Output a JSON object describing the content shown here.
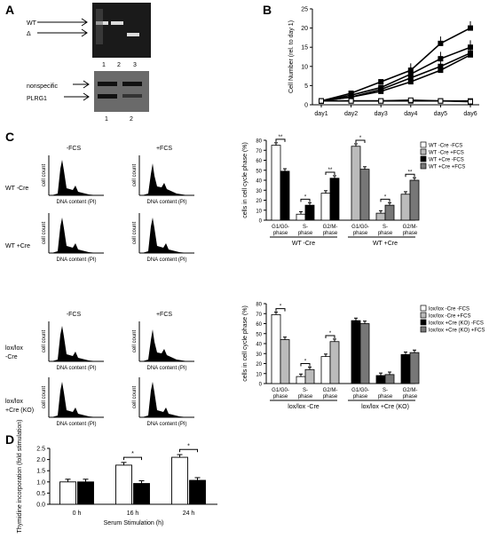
{
  "panels": {
    "A": {
      "label": "A",
      "gel_labels": [
        "WT",
        "Δ"
      ],
      "gel_lanes": [
        "1",
        "2",
        "3"
      ],
      "blot_labels": [
        "nonspecific",
        "PLRG1"
      ],
      "blot_lanes": [
        "1",
        "2"
      ]
    },
    "B": {
      "label": "B"
    },
    "C": {
      "label": "C"
    },
    "D": {
      "label": "D"
    }
  },
  "histograms": {
    "col_labels": [
      "-FCS",
      "+FCS"
    ],
    "row_labels": [
      "WT -Cre",
      "WT +Cre",
      "lox/lox",
      "-Cre",
      "lox/lox",
      "+Cre (KO)"
    ],
    "ylabel": "cell count",
    "xlabel": "DNA content (PI)"
  },
  "chart_data": [
    {
      "type": "line",
      "panel": "B",
      "ylabel": "Cell Number (rel. to day 1)",
      "categories": [
        "day1",
        "day2",
        "day3",
        "day4",
        "day5",
        "day6"
      ],
      "ylim": [
        0,
        25
      ],
      "yticks": [
        "0",
        "5",
        "10",
        "15",
        "20",
        "25"
      ],
      "series": [
        {
          "values": [
            1,
            3,
            6,
            9,
            16,
            20
          ]
        },
        {
          "values": [
            1,
            2.5,
            4.5,
            8,
            12,
            15
          ]
        },
        {
          "values": [
            1,
            2,
            4,
            7,
            10,
            13.5
          ]
        },
        {
          "values": [
            1,
            2,
            3.5,
            6,
            9,
            13
          ]
        },
        {
          "values": [
            1,
            1,
            1,
            1,
            1,
            1
          ]
        },
        {
          "values": [
            1,
            1,
            1,
            1.2,
            1,
            0.8
          ]
        }
      ]
    },
    {
      "type": "bar",
      "panel": "C-top",
      "ylabel": "cells in cell cycle phase (%)",
      "ylim": [
        0,
        80
      ],
      "yticks": [
        "0",
        "10",
        "20",
        "30",
        "40",
        "50",
        "60",
        "70",
        "80"
      ],
      "categories": [
        "G1/G0-phase",
        "S-phase",
        "G2/M-phase",
        "G1/G0-phase",
        "S-phase",
        "G2/M-phase"
      ],
      "group_labels": [
        "WT -Cre",
        "WT +Cre"
      ],
      "legend": [
        "WT -Cre -FCS",
        "WT -Cre +FCS",
        "WT +Cre -FCS",
        "WT +Cre +FCS"
      ],
      "colors": [
        "#ffffff",
        "#bbbbbb",
        "#000000",
        "#777777"
      ],
      "pairs": [
        {
          "series": [
            0,
            2
          ],
          "values": [
            75,
            49
          ],
          "sig": "**"
        },
        {
          "series": [
            0,
            2
          ],
          "values": [
            6,
            15
          ],
          "sig": "*"
        },
        {
          "series": [
            0,
            2
          ],
          "values": [
            27,
            42
          ],
          "sig": "**"
        },
        {
          "series": [
            1,
            3
          ],
          "values": [
            74,
            51
          ],
          "sig": "*"
        },
        {
          "series": [
            1,
            3
          ],
          "values": [
            7,
            15
          ],
          "sig": "*"
        },
        {
          "series": [
            1,
            3
          ],
          "values": [
            26,
            40
          ],
          "sig": "**"
        }
      ]
    },
    {
      "type": "bar",
      "panel": "C-bottom",
      "ylabel": "cells in cell cycle phase (%)",
      "ylim": [
        0,
        80
      ],
      "yticks": [
        "0",
        "10",
        "20",
        "30",
        "40",
        "50",
        "60",
        "70",
        "80"
      ],
      "categories": [
        "G1/G0-phase",
        "S-phase",
        "G2/M-phase",
        "G1/G0-phase",
        "S-phase",
        "G2/M-phase"
      ],
      "group_labels": [
        "lox/lox -Cre",
        "lox/lox +Cre (KO)"
      ],
      "legend": [
        "lox/lox -Cre -FCS",
        "lox/lox -Cre +FCS",
        "lox/lox +Cre (KO) -FCS",
        "lox/lox +Cre (KO) +FCS"
      ],
      "colors": [
        "#ffffff",
        "#bbbbbb",
        "#000000",
        "#777777"
      ],
      "pairs": [
        {
          "series": [
            0,
            1
          ],
          "values": [
            69,
            44
          ],
          "sig": "*"
        },
        {
          "series": [
            0,
            1
          ],
          "values": [
            7,
            14
          ],
          "sig": "*"
        },
        {
          "series": [
            0,
            1
          ],
          "values": [
            27,
            42
          ],
          "sig": "*"
        },
        {
          "series": [
            2,
            3
          ],
          "values": [
            63,
            60
          ],
          "sig": ""
        },
        {
          "series": [
            2,
            3
          ],
          "values": [
            8,
            9
          ],
          "sig": ""
        },
        {
          "series": [
            2,
            3
          ],
          "values": [
            29,
            31
          ],
          "sig": ""
        }
      ]
    },
    {
      "type": "bar",
      "panel": "D",
      "ylabel": "Thymidine incorporation (fold stimulation)",
      "xlabel": "Serum Stimulation (h)",
      "ylim": [
        0,
        2.5
      ],
      "yticks": [
        "0.0",
        "0.5",
        "1.0",
        "1.5",
        "2.0",
        "2.5"
      ],
      "categories": [
        "0 h",
        "16 h",
        "24 h"
      ],
      "colors": [
        "#ffffff",
        "#000000"
      ],
      "series": [
        {
          "values": [
            1.0,
            1.75,
            2.1
          ]
        },
        {
          "values": [
            1.0,
            0.93,
            1.07
          ]
        }
      ],
      "sig": [
        "",
        "*",
        "*"
      ]
    }
  ]
}
